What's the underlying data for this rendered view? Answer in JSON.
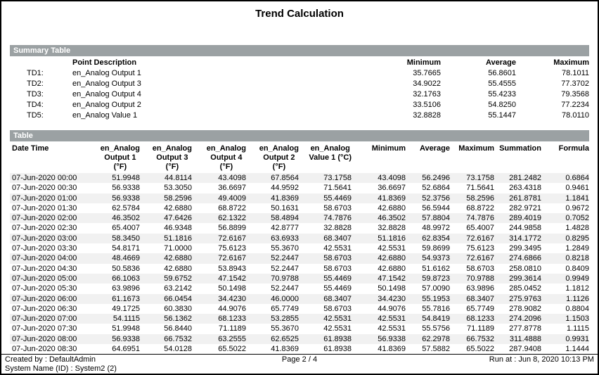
{
  "title": "Trend Calculation",
  "colors": {
    "section_bar_bg": "#9ba1a3",
    "section_bar_text": "#ffffff",
    "row_alt_bg": "#f1f1f1",
    "page_border": "#000000"
  },
  "summary": {
    "section_label": "Summary Table",
    "headers": {
      "description": "Point Description",
      "minimum": "Minimum",
      "average": "Average",
      "maximum": "Maximum"
    },
    "rows": [
      [
        "TD1:",
        "en_Analog Output 1",
        "35.7665",
        "56.8601",
        "78.1011"
      ],
      [
        "TD2:",
        "en_Analog Output 3",
        "34.9022",
        "55.4555",
        "77.3702"
      ],
      [
        "TD3:",
        "en_Analog Output 4",
        "32.1763",
        "55.4233",
        "79.3568"
      ],
      [
        "TD4:",
        "en_Analog Output 2",
        "33.5106",
        "54.8250",
        "77.2234"
      ],
      [
        "TD5:",
        "en_Analog Value 1",
        "32.8828",
        "55.1447",
        "78.0110"
      ]
    ]
  },
  "table": {
    "section_label": "Table",
    "columns": [
      {
        "lines": [
          "Date Time"
        ]
      },
      {
        "lines": [
          "en_Analog",
          "Output 1",
          "(°F)"
        ]
      },
      {
        "lines": [
          "en_Analog",
          "Output 3",
          "(°F)"
        ]
      },
      {
        "lines": [
          "en_Analog",
          "Output 4",
          "(°F)"
        ]
      },
      {
        "lines": [
          "en_Analog",
          "Output 2",
          "(°F)"
        ]
      },
      {
        "lines": [
          "en_Analog",
          "Value 1 (°C)"
        ]
      },
      {
        "lines": [
          "Minimum"
        ]
      },
      {
        "lines": [
          "Average"
        ]
      },
      {
        "lines": [
          "Maximum"
        ]
      },
      {
        "lines": [
          "Summation"
        ]
      },
      {
        "lines": [
          "Formula"
        ]
      }
    ],
    "rows": [
      [
        "07-Jun-2020 00:00",
        "51.9948",
        "44.8114",
        "43.4098",
        "67.8564",
        "73.1758",
        "43.4098",
        "56.2496",
        "73.1758",
        "281.2482",
        "0.6864"
      ],
      [
        "07-Jun-2020 00:30",
        "56.9338",
        "53.3050",
        "36.6697",
        "44.9592",
        "71.5641",
        "36.6697",
        "52.6864",
        "71.5641",
        "263.4318",
        "0.9461"
      ],
      [
        "07-Jun-2020 01:00",
        "56.9338",
        "58.2596",
        "49.4009",
        "41.8369",
        "55.4469",
        "41.8369",
        "52.3756",
        "58.2596",
        "261.8781",
        "1.1841"
      ],
      [
        "07-Jun-2020 01:30",
        "62.5784",
        "42.6880",
        "68.8722",
        "50.1631",
        "58.6703",
        "42.6880",
        "56.5944",
        "68.8722",
        "282.9721",
        "0.9672"
      ],
      [
        "07-Jun-2020 02:00",
        "46.3502",
        "47.6426",
        "62.1322",
        "58.4894",
        "74.7876",
        "46.3502",
        "57.8804",
        "74.7876",
        "289.4019",
        "0.7052"
      ],
      [
        "07-Jun-2020 02:30",
        "65.4007",
        "46.9348",
        "56.8899",
        "42.8777",
        "32.8828",
        "32.8828",
        "48.9972",
        "65.4007",
        "244.9858",
        "1.4828"
      ],
      [
        "07-Jun-2020 03:00",
        "58.3450",
        "51.1816",
        "72.6167",
        "63.6933",
        "68.3407",
        "51.1816",
        "62.8354",
        "72.6167",
        "314.1772",
        "0.8295"
      ],
      [
        "07-Jun-2020 03:30",
        "54.8171",
        "71.0000",
        "75.6123",
        "55.3670",
        "42.5531",
        "42.5531",
        "59.8699",
        "75.6123",
        "299.3495",
        "1.2849"
      ],
      [
        "07-Jun-2020 04:00",
        "48.4669",
        "42.6880",
        "72.6167",
        "52.2447",
        "58.6703",
        "42.6880",
        "54.9373",
        "72.6167",
        "274.6866",
        "0.8218"
      ],
      [
        "07-Jun-2020 04:30",
        "50.5836",
        "42.6880",
        "53.8943",
        "52.2447",
        "58.6703",
        "42.6880",
        "51.6162",
        "58.6703",
        "258.0810",
        "0.8409"
      ],
      [
        "07-Jun-2020 05:00",
        "66.1063",
        "59.6752",
        "47.1542",
        "70.9788",
        "55.4469",
        "47.1542",
        "59.8723",
        "70.9788",
        "299.3614",
        "0.9949"
      ],
      [
        "07-Jun-2020 05:30",
        "63.9896",
        "63.2142",
        "50.1498",
        "52.2447",
        "55.4469",
        "50.1498",
        "57.0090",
        "63.9896",
        "285.0452",
        "1.1812"
      ],
      [
        "07-Jun-2020 06:00",
        "61.1673",
        "66.0454",
        "34.4230",
        "46.0000",
        "68.3407",
        "34.4230",
        "55.1953",
        "68.3407",
        "275.9763",
        "1.1126"
      ],
      [
        "07-Jun-2020 06:30",
        "49.1725",
        "60.3830",
        "44.9076",
        "65.7749",
        "58.6703",
        "44.9076",
        "55.7816",
        "65.7749",
        "278.9082",
        "0.8804"
      ],
      [
        "07-Jun-2020 07:00",
        "54.1115",
        "56.1362",
        "68.1233",
        "53.2855",
        "42.5531",
        "42.5531",
        "54.8419",
        "68.1233",
        "274.2096",
        "1.1503"
      ],
      [
        "07-Jun-2020 07:30",
        "51.9948",
        "56.8440",
        "71.1189",
        "55.3670",
        "42.5531",
        "42.5531",
        "55.5756",
        "71.1189",
        "277.8778",
        "1.1115"
      ],
      [
        "07-Jun-2020 08:00",
        "56.9338",
        "66.7532",
        "63.2555",
        "62.6525",
        "61.8938",
        "56.9338",
        "62.2978",
        "66.7532",
        "311.4888",
        "0.9931"
      ],
      [
        "07-Jun-2020 08:30",
        "64.6951",
        "54.0128",
        "65.5022",
        "41.8369",
        "61.8938",
        "41.8369",
        "57.5882",
        "65.5022",
        "287.9408",
        "1.1444"
      ]
    ]
  },
  "footer": {
    "created_by": "Created by : DefaultAdmin",
    "system_name": "System Name (ID) : System2 (2)",
    "page": "Page 2 / 4",
    "run_at": "Run at : Jun 8, 2020 10:13 PM"
  }
}
